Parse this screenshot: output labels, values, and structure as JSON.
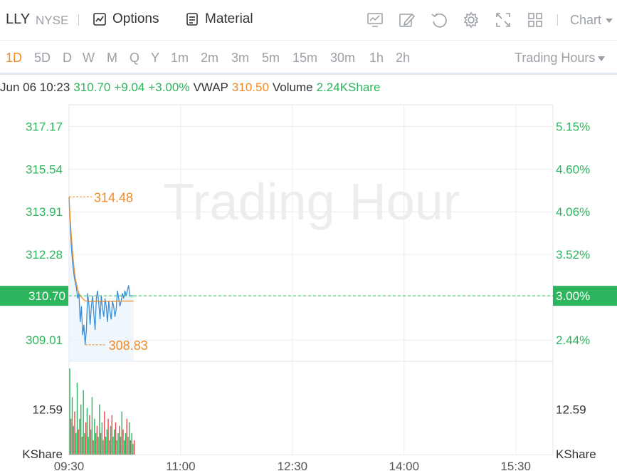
{
  "header": {
    "symbol": "LLY",
    "exchange": "NYSE",
    "options_label": "Options",
    "material_label": "Material",
    "chart_menu_label": "Chart",
    "icons": [
      "chart-line-icon",
      "draw-pen-icon",
      "undo-icon",
      "settings-gear-icon",
      "fullscreen-icon",
      "layout-grid-icon",
      "chevron-down-icon"
    ]
  },
  "periods": {
    "items": [
      "1D",
      "5D",
      "D",
      "W",
      "M",
      "Q",
      "Y",
      "1m",
      "2m",
      "3m",
      "5m",
      "15m",
      "30m",
      "1h",
      "2h"
    ],
    "active": "1D",
    "session_label": "Trading Hours"
  },
  "info": {
    "datetime": "Jun 06 10:23",
    "price": "310.70",
    "change": "+9.04",
    "change_pct": "+3.00%",
    "vwap_label": "VWAP",
    "vwap": "310.50",
    "volume_label": "Volume",
    "volume": "2.24KShare"
  },
  "colors": {
    "up": "#2db55d",
    "down": "#e8474c",
    "accent": "#f08a24",
    "price_line": "#3b8fd9",
    "vwap_line": "#f08a24"
  },
  "chart_data": {
    "type": "line",
    "watermark": "Trading Hour",
    "price_ticks": [
      "317.17",
      "315.54",
      "313.91",
      "312.28",
      "310.70",
      "309.01"
    ],
    "pct_ticks": [
      "5.15%",
      "4.60%",
      "4.06%",
      "3.52%",
      "3.00%",
      "2.44%"
    ],
    "current_price": "310.70",
    "current_pct": "3.00%",
    "high_label": "314.48",
    "low_label": "308.83",
    "high": 314.48,
    "low": 308.83,
    "volume_tick": "12.59",
    "volume_unit": "KShare",
    "x_ticks": [
      "09:30",
      "11:00",
      "12:30",
      "14:00",
      "15:30"
    ],
    "ylim": [
      308.2,
      318.0
    ],
    "xlim_minutes": [
      0,
      390
    ],
    "volume_max": 26,
    "price": [
      314.48,
      313.3,
      312.5,
      311.9,
      311.5,
      311.2,
      311.0,
      310.6,
      310.8,
      309.7,
      310.3,
      309.2,
      309.6,
      308.83,
      309.4,
      310.8,
      310.4,
      309.6,
      310.3,
      310.7,
      310.0,
      309.4,
      310.6,
      310.9,
      310.4,
      309.8,
      310.7,
      310.2,
      309.9,
      310.6,
      310.3,
      309.7,
      310.5,
      310.1,
      309.8,
      310.5,
      310.3,
      309.9,
      310.2,
      310.9,
      310.6,
      310.3,
      310.5,
      310.8,
      310.6,
      310.9,
      310.7,
      310.9,
      311.1,
      310.7,
      310.7,
      310.7,
      310.7
    ],
    "vwap": [
      314.48,
      313.6,
      312.9,
      312.3,
      311.8,
      311.4,
      311.15,
      310.95,
      310.8,
      310.7,
      310.65,
      310.6,
      310.55,
      310.5,
      310.5,
      310.52,
      310.5,
      310.48,
      310.48,
      310.5,
      310.5,
      310.48,
      310.5,
      310.5,
      310.5,
      310.48,
      310.5,
      310.5,
      310.48,
      310.5,
      310.5,
      310.48,
      310.5,
      310.5,
      310.48,
      310.5,
      310.5,
      310.48,
      310.5,
      310.5,
      310.5,
      310.5,
      310.5,
      310.5,
      310.5,
      310.5,
      310.5,
      310.5,
      310.5,
      310.5,
      310.5,
      310.5,
      310.5
    ],
    "volume": [
      24,
      10,
      16,
      8,
      12,
      6,
      20,
      7,
      10,
      14,
      5,
      18,
      6,
      9,
      13,
      5,
      11,
      7,
      16,
      4,
      10,
      6,
      8,
      5,
      14,
      6,
      9,
      4,
      12,
      5,
      7,
      10,
      4,
      8,
      11,
      5,
      7,
      9,
      4,
      6,
      8,
      5,
      12,
      7,
      4,
      6,
      10,
      5,
      9,
      4,
      6,
      3,
      4
    ],
    "volume_dir": [
      "u",
      "d",
      "u",
      "u",
      "d",
      "u",
      "u",
      "d",
      "u",
      "u",
      "d",
      "u",
      "u",
      "d",
      "u",
      "u",
      "d",
      "u",
      "u",
      "d",
      "u",
      "u",
      "d",
      "u",
      "u",
      "d",
      "u",
      "u",
      "d",
      "u",
      "u",
      "d",
      "u",
      "u",
      "d",
      "u",
      "u",
      "d",
      "u",
      "u",
      "d",
      "u",
      "u",
      "d",
      "u",
      "u",
      "d",
      "u",
      "u",
      "d",
      "u",
      "u",
      "d"
    ]
  }
}
